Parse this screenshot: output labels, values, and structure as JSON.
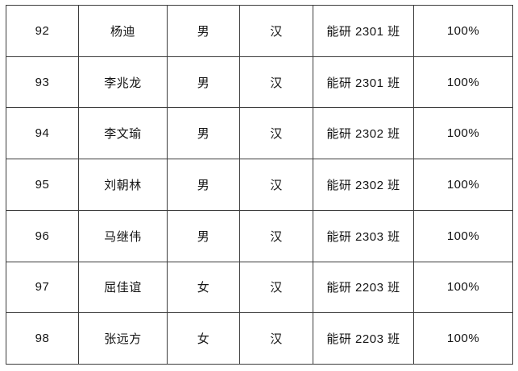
{
  "colors": {
    "background": "#ffffff",
    "border": "#3c3c3c",
    "text": "#141414"
  },
  "table": {
    "columns": [
      "number",
      "name",
      "gender",
      "ethnicity",
      "class",
      "rate"
    ],
    "rows": [
      {
        "number": "92",
        "name": "杨迪",
        "gender": "男",
        "ethnicity": "汉",
        "class": "能研 2301 班",
        "rate": "100%"
      },
      {
        "number": "93",
        "name": "李兆龙",
        "gender": "男",
        "ethnicity": "汉",
        "class": "能研 2301 班",
        "rate": "100%"
      },
      {
        "number": "94",
        "name": "李文瑜",
        "gender": "男",
        "ethnicity": "汉",
        "class": "能研 2302 班",
        "rate": "100%"
      },
      {
        "number": "95",
        "name": "刘朝林",
        "gender": "男",
        "ethnicity": "汉",
        "class": "能研 2302 班",
        "rate": "100%"
      },
      {
        "number": "96",
        "name": "马继伟",
        "gender": "男",
        "ethnicity": "汉",
        "class": "能研 2303 班",
        "rate": "100%"
      },
      {
        "number": "97",
        "name": "屈佳谊",
        "gender": "女",
        "ethnicity": "汉",
        "class": "能研 2203 班",
        "rate": "100%"
      },
      {
        "number": "98",
        "name": "张远方",
        "gender": "女",
        "ethnicity": "汉",
        "class": "能研 2203 班",
        "rate": "100%"
      }
    ]
  }
}
